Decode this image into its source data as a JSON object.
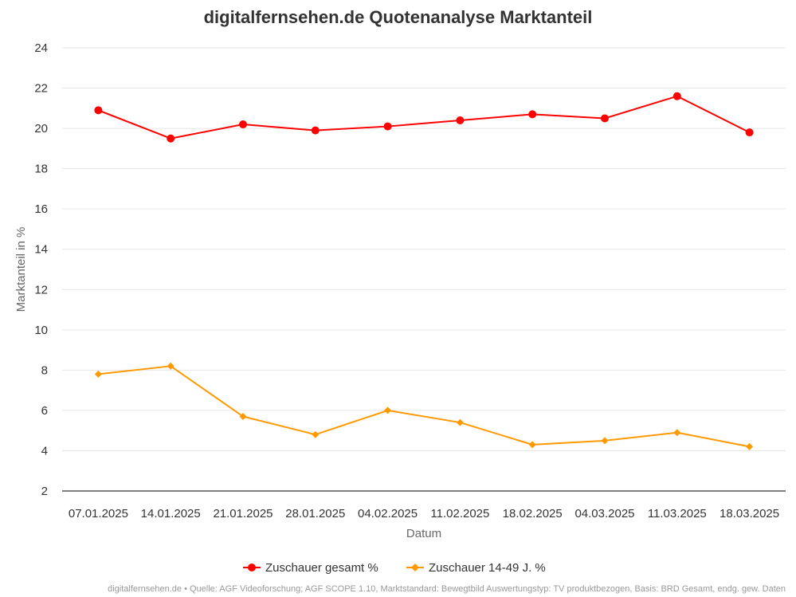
{
  "chart_data": {
    "type": "line",
    "title": "digitalfernsehen.de Quotenanalyse Marktanteil",
    "xlabel": "Datum",
    "ylabel": "Marktanteil in %",
    "categories": [
      "07.01.2025",
      "14.01.2025",
      "21.01.2025",
      "28.01.2025",
      "04.02.2025",
      "11.02.2025",
      "18.02.2025",
      "04.03.2025",
      "11.03.2025",
      "18.03.2025"
    ],
    "ylim": [
      2,
      24
    ],
    "yticks": [
      2,
      4,
      6,
      8,
      10,
      12,
      14,
      16,
      18,
      20,
      22,
      24
    ],
    "grid": true,
    "legend_position": "bottom",
    "series": [
      {
        "name": "Zuschauer gesamt %",
        "color": "#ff0000",
        "marker": "circle",
        "values": [
          20.9,
          19.5,
          20.2,
          19.9,
          20.1,
          20.4,
          20.7,
          20.5,
          21.6,
          19.8
        ]
      },
      {
        "name": "Zuschauer 14-49 J. %",
        "color": "#ff9900",
        "marker": "diamond",
        "values": [
          7.8,
          8.2,
          5.7,
          4.8,
          6.0,
          5.4,
          4.3,
          4.5,
          4.9,
          4.2
        ]
      }
    ]
  },
  "footer": {
    "source": "digitalfernsehen.de • Quelle: AGF Videoforschung; AGF SCOPE 1.10, Marktstandard: Bewegtbild Auswertungstyp: TV produktbezogen, Basis: BRD Gesamt, endg. gew. Daten"
  }
}
